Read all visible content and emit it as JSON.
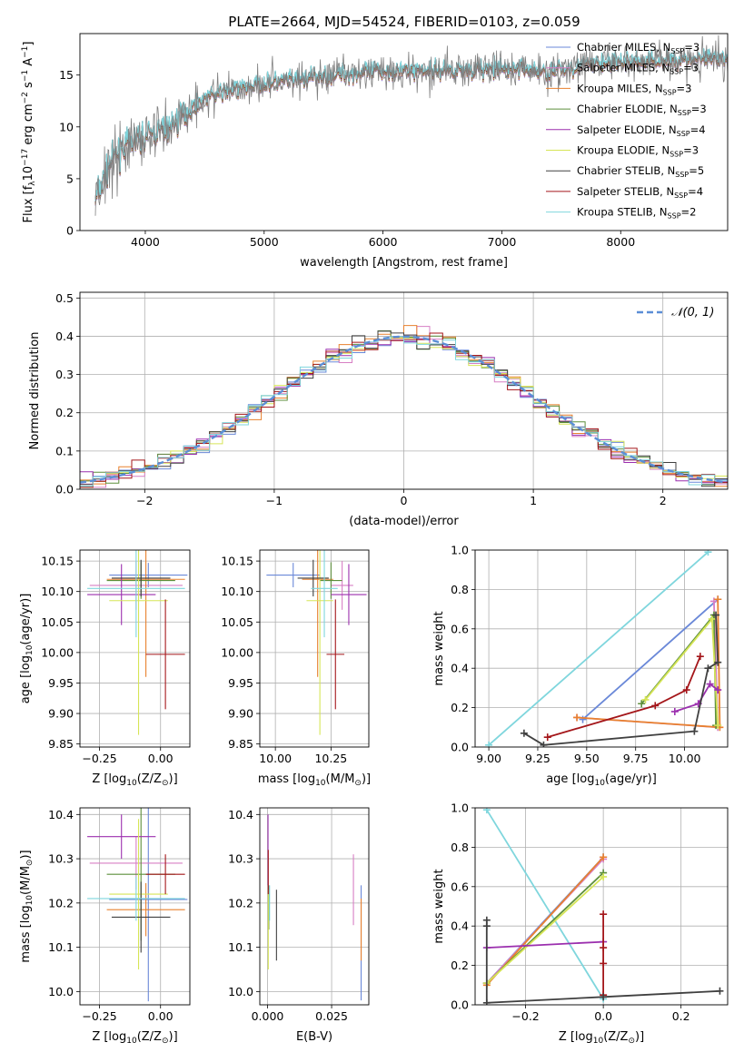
{
  "figure": {
    "title": "PLATE=2664, MJD=54524, FIBERID=0103, z=0.059"
  },
  "chart_data": [
    {
      "panel": "spectrum",
      "type": "line",
      "xlabel": "wavelength [Angstrom, rest frame]",
      "ylabel": "Flux [f_λ 10^-17 erg cm^-2 s^-1 A^-1]",
      "xlim": [
        3450,
        8900
      ],
      "ylim": [
        0,
        19
      ],
      "xticks": [
        4000,
        5000,
        6000,
        7000,
        8000
      ],
      "yticks": [
        0,
        5,
        10,
        15
      ],
      "grid": false,
      "legend_position": "top-right",
      "continuum_shape": {
        "x": [
          3600,
          3700,
          3800,
          3900,
          4000,
          4100,
          4200,
          4300,
          4400,
          4500,
          4700,
          5000,
          5300,
          5600,
          6000,
          6400,
          6800,
          7200,
          7400,
          7500,
          7700,
          8000,
          8300,
          8600,
          8900
        ],
        "y": [
          3.5,
          6.5,
          8,
          8.5,
          9,
          9.5,
          10,
          11,
          12,
          12.8,
          13.5,
          14.2,
          14.6,
          15,
          15.4,
          15.5,
          15.5,
          15.6,
          15.2,
          15.5,
          16,
          16.3,
          16.4,
          16.5,
          16.5
        ]
      },
      "series": [
        {
          "name": "Chabrier MILES, N_SSP=3",
          "color": "#6a88d8"
        },
        {
          "name": "Salpeter MILES, N_SSP=3",
          "color": "#d77fc4"
        },
        {
          "name": "Kroupa MILES, N_SSP=3",
          "color": "#e8812e"
        },
        {
          "name": "Chabrier ELODIE, N_SSP=3",
          "color": "#5d8f3c"
        },
        {
          "name": "Salpeter ELODIE, N_SSP=4",
          "color": "#9b2fae"
        },
        {
          "name": "Kroupa ELODIE, N_SSP=3",
          "color": "#d6e557"
        },
        {
          "name": "Chabrier STELIB, N_SSP=5",
          "color": "#404040"
        },
        {
          "name": "Salpeter STELIB, N_SSP=4",
          "color": "#a4161a"
        },
        {
          "name": "Kroupa STELIB, N_SSP=2",
          "color": "#7fd6dd"
        }
      ]
    },
    {
      "panel": "residuals",
      "type": "line",
      "xlabel": "(data-model)/error",
      "ylabel": "Normed distribution",
      "xlim": [
        -2.5,
        2.5
      ],
      "ylim": [
        0,
        0.515
      ],
      "xticks": [
        -2,
        -1,
        0,
        1,
        2
      ],
      "yticks": [
        0.0,
        0.1,
        0.2,
        0.3,
        0.4,
        0.5
      ],
      "grid": true,
      "legend_position": "top-right",
      "legend": "N(0,1)"
    },
    {
      "panel": "age-vs-Z",
      "type": "scatter",
      "xlabel": "Z [log10(Z/Z_sun)]",
      "ylabel": "age [log10(age/yr)]",
      "xlim": [
        -0.33,
        0.12
      ],
      "ylim": [
        9.845,
        10.168
      ],
      "xticks": [
        -0.25,
        0.0
      ],
      "yticks": [
        9.85,
        9.9,
        9.95,
        10.0,
        10.05,
        10.1,
        10.15
      ],
      "grid": true,
      "points": [
        {
          "color": "#6a88d8",
          "x": -0.05,
          "xerr": 0.16,
          "y": 10.127,
          "yerr": 0.02
        },
        {
          "color": "#d77fc4",
          "x": -0.1,
          "xerr": 0.19,
          "y": 10.11,
          "yerr": 0.04
        },
        {
          "color": "#e8812e",
          "x": -0.06,
          "xerr": 0.16,
          "y": 10.12,
          "yerr": 0.16
        },
        {
          "color": "#5d8f3c",
          "x": -0.08,
          "xerr": 0.14,
          "y": 10.118,
          "yerr": 0.03
        },
        {
          "color": "#9b2fae",
          "x": -0.16,
          "xerr": 0.14,
          "y": 10.095,
          "yerr": 0.05
        },
        {
          "color": "#d6e557",
          "x": -0.09,
          "xerr": 0.12,
          "y": 10.085,
          "yerr": 0.22
        },
        {
          "color": "#404040",
          "x": -0.08,
          "xerr": 0.12,
          "y": 10.122,
          "yerr": 0.03
        },
        {
          "color": "#a4161a",
          "x": 0.02,
          "xerr": 0.08,
          "y": 9.997,
          "yerr": 0.09
        },
        {
          "color": "#7fd6dd",
          "x": -0.1,
          "xerr": 0.2,
          "y": 10.105,
          "yerr": 0.08
        }
      ]
    },
    {
      "panel": "age-vs-mass",
      "type": "scatter",
      "xlabel": "mass [log10(M/M_sun)]",
      "ylabel": "",
      "xlim": [
        9.93,
        10.42
      ],
      "ylim": [
        9.845,
        10.168
      ],
      "xticks": [
        10.0,
        10.25
      ],
      "yticks": [
        9.85,
        9.9,
        9.95,
        10.0,
        10.05,
        10.1,
        10.15
      ],
      "grid": true,
      "points": [
        {
          "color": "#6a88d8",
          "x": 10.08,
          "xerr": 0.12,
          "y": 10.127,
          "yerr": 0.02
        },
        {
          "color": "#d77fc4",
          "x": 10.3,
          "xerr": 0.05,
          "y": 10.11,
          "yerr": 0.04
        },
        {
          "color": "#e8812e",
          "x": 10.19,
          "xerr": 0.07,
          "y": 10.12,
          "yerr": 0.16
        },
        {
          "color": "#5d8f3c",
          "x": 10.25,
          "xerr": 0.05,
          "y": 10.118,
          "yerr": 0.03
        },
        {
          "color": "#9b2fae",
          "x": 10.33,
          "xerr": 0.08,
          "y": 10.095,
          "yerr": 0.05
        },
        {
          "color": "#d6e557",
          "x": 10.2,
          "xerr": 0.06,
          "y": 10.085,
          "yerr": 0.22
        },
        {
          "color": "#404040",
          "x": 10.17,
          "xerr": 0.07,
          "y": 10.122,
          "yerr": 0.03
        },
        {
          "color": "#a4161a",
          "x": 10.27,
          "xerr": 0.04,
          "y": 9.997,
          "yerr": 0.09
        },
        {
          "color": "#7fd6dd",
          "x": 10.22,
          "xerr": 0.06,
          "y": 10.105,
          "yerr": 0.08
        }
      ]
    },
    {
      "panel": "weight-vs-age",
      "type": "line",
      "xlabel": "age [log10(age/yr)]",
      "ylabel": "mass weight",
      "xlim": [
        8.93,
        10.22
      ],
      "ylim": [
        0,
        1.0
      ],
      "xticks": [
        9.0,
        9.25,
        9.5,
        9.75,
        10.0
      ],
      "yticks": [
        0.0,
        0.2,
        0.4,
        0.6,
        0.8,
        1.0
      ],
      "grid": true,
      "series": [
        {
          "color": "#7fd6dd",
          "x": [
            9.0,
            10.12
          ],
          "y": [
            0.01,
            0.99
          ]
        },
        {
          "color": "#6a88d8",
          "x": [
            9.48,
            10.17
          ],
          "y": [
            0.14,
            0.75
          ]
        },
        {
          "color": "#d77fc4",
          "x": [
            9.45,
            10.17,
            10.15
          ],
          "y": [
            0.15,
            0.1,
            0.74
          ]
        },
        {
          "color": "#e8812e",
          "x": [
            9.45,
            10.18,
            10.17
          ],
          "y": [
            0.15,
            0.1,
            0.75
          ]
        },
        {
          "color": "#5d8f3c",
          "x": [
            9.78,
            10.15,
            10.16
          ],
          "y": [
            0.22,
            0.67,
            0.11
          ]
        },
        {
          "color": "#d6e557",
          "x": [
            9.8,
            10.14,
            10.17
          ],
          "y": [
            0.24,
            0.65,
            0.11
          ]
        },
        {
          "color": "#9b2fae",
          "x": [
            9.95,
            10.07,
            10.13,
            10.17
          ],
          "y": [
            0.18,
            0.22,
            0.32,
            0.29
          ]
        },
        {
          "color": "#a4161a",
          "x": [
            9.3,
            9.85,
            10.01,
            10.08
          ],
          "y": [
            0.05,
            0.21,
            0.29,
            0.46
          ]
        },
        {
          "color": "#404040",
          "x": [
            9.18,
            9.28,
            10.05,
            10.12,
            10.17,
            10.16
          ],
          "y": [
            0.07,
            0.01,
            0.08,
            0.4,
            0.43,
            0.67
          ]
        }
      ]
    },
    {
      "panel": "mass-vs-Z",
      "type": "scatter",
      "xlabel": "Z [log10(Z/Z_sun)]",
      "ylabel": "mass [log10(M/M_sun)]",
      "xlim": [
        -0.33,
        0.12
      ],
      "ylim": [
        9.97,
        10.415
      ],
      "xticks": [
        -0.25,
        0.0
      ],
      "yticks": [
        10.0,
        10.1,
        10.2,
        10.3,
        10.4
      ],
      "grid": true,
      "points": [
        {
          "color": "#6a88d8",
          "x": -0.05,
          "xerr": 0.16,
          "y": 10.208,
          "yerr": 0.23
        },
        {
          "color": "#d77fc4",
          "x": -0.1,
          "xerr": 0.19,
          "y": 10.29,
          "yerr": 0.06
        },
        {
          "color": "#e8812e",
          "x": -0.06,
          "xerr": 0.16,
          "y": 10.185,
          "yerr": 0.06
        },
        {
          "color": "#5d8f3c",
          "x": -0.08,
          "xerr": 0.14,
          "y": 10.265,
          "yerr": 0.15
        },
        {
          "color": "#9b2fae",
          "x": -0.16,
          "xerr": 0.14,
          "y": 10.35,
          "yerr": 0.05
        },
        {
          "color": "#d6e557",
          "x": -0.09,
          "xerr": 0.12,
          "y": 10.22,
          "yerr": 0.17
        },
        {
          "color": "#404040",
          "x": -0.08,
          "xerr": 0.12,
          "y": 10.168,
          "yerr": 0.08
        },
        {
          "color": "#a4161a",
          "x": 0.02,
          "xerr": 0.08,
          "y": 10.265,
          "yerr": 0.045
        },
        {
          "color": "#7fd6dd",
          "x": -0.1,
          "xerr": 0.2,
          "y": 10.21,
          "yerr": 0.05
        }
      ]
    },
    {
      "panel": "mass-vs-ebv",
      "type": "scatter",
      "xlabel": "E(B-V)",
      "ylabel": "",
      "xlim": [
        -0.003,
        0.0395
      ],
      "ylim": [
        9.97,
        10.415
      ],
      "xticks": [
        0.0,
        0.025
      ],
      "yticks": [
        10.0,
        10.1,
        10.2,
        10.3,
        10.4
      ],
      "grid": true,
      "points": [
        {
          "color": "#6a88d8",
          "x": 0.0365,
          "y": 10.11,
          "yerr": 0.13
        },
        {
          "color": "#d77fc4",
          "x": 0.0335,
          "y": 10.23,
          "yerr": 0.08
        },
        {
          "color": "#e8812e",
          "x": 0.0365,
          "y": 10.14,
          "yerr": 0.07
        },
        {
          "color": "#5d8f3c",
          "x": 0.0005,
          "y": 10.19,
          "yerr": 0.05
        },
        {
          "color": "#9b2fae",
          "x": 0.0002,
          "y": 10.32,
          "yerr": 0.08
        },
        {
          "color": "#d6e557",
          "x": 0.0003,
          "y": 10.14,
          "yerr": 0.09
        },
        {
          "color": "#404040",
          "x": 0.0035,
          "y": 10.15,
          "yerr": 0.08
        },
        {
          "color": "#a4161a",
          "x": 0.0003,
          "y": 10.27,
          "yerr": 0.05
        },
        {
          "color": "#7fd6dd",
          "x": 0.0008,
          "y": 10.2,
          "yerr": 0.04
        }
      ]
    },
    {
      "panel": "weight-vs-Z",
      "type": "line",
      "xlabel": "Z [log10(Z/Z_sun)]",
      "ylabel": "mass weight",
      "xlim": [
        -0.33,
        0.32
      ],
      "ylim": [
        0,
        1.0
      ],
      "xticks": [
        -0.2,
        0.0,
        0.2
      ],
      "yticks": [
        0.0,
        0.2,
        0.4,
        0.6,
        0.8,
        1.0
      ],
      "grid": true,
      "series": [
        {
          "color": "#7fd6dd",
          "x": [
            -0.3,
            0.0
          ],
          "y": [
            0.99,
            0.03
          ]
        },
        {
          "color": "#6a88d8",
          "x": [
            -0.3,
            0.0
          ],
          "y": [
            0.11,
            0.75
          ]
        },
        {
          "color": "#d77fc4",
          "x": [
            -0.3,
            0.0
          ],
          "y": [
            0.11,
            0.74
          ]
        },
        {
          "color": "#e8812e",
          "x": [
            -0.3,
            0.0
          ],
          "y": [
            0.1,
            0.75
          ]
        },
        {
          "color": "#5d8f3c",
          "x": [
            -0.3,
            0.0
          ],
          "y": [
            0.11,
            0.67
          ]
        },
        {
          "color": "#d6e557",
          "x": [
            -0.3,
            0.0
          ],
          "y": [
            0.11,
            0.65
          ]
        },
        {
          "color": "#9b2fae",
          "x": [
            -0.3,
            0.0
          ],
          "y": [
            0.29,
            0.32
          ]
        },
        {
          "color": "#a4161a",
          "x": [
            0.0,
            0.0,
            0.0,
            0.0
          ],
          "y": [
            0.05,
            0.21,
            0.29,
            0.46
          ]
        },
        {
          "color": "#404040",
          "x": [
            -0.3,
            -0.3,
            -0.3,
            0.0,
            0.3
          ],
          "y": [
            0.43,
            0.4,
            0.01,
            0.04,
            0.07
          ]
        }
      ]
    }
  ]
}
